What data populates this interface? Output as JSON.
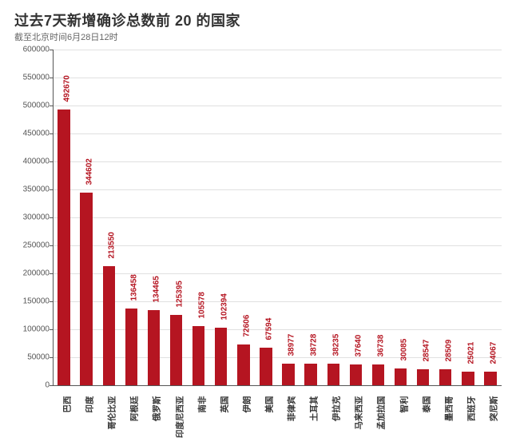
{
  "title": "过去7天新增确诊总数前 20 的国家",
  "subtitle": "截至北京时间6月28日12时",
  "chart": {
    "type": "bar",
    "background_color": "#ffffff",
    "grid_color": "#e0e0e0",
    "axis_color": "#555555",
    "bar_color": "#b51521",
    "label_color": "#b51521",
    "tick_label_color": "#555555",
    "title_fontsize": 18,
    "subtitle_fontsize": 11,
    "tick_fontsize": 10,
    "bar_label_fontsize": 10,
    "cat_label_fontsize": 10.5,
    "ylim": [
      0,
      600000
    ],
    "ytick_step": 50000,
    "yticks": [
      0,
      50000,
      100000,
      150000,
      200000,
      250000,
      300000,
      350000,
      400000,
      450000,
      500000,
      550000,
      600000
    ],
    "bar_width": 0.55,
    "categories": [
      "巴西",
      "印度",
      "哥伦比亚",
      "阿根廷",
      "俄罗斯",
      "印度尼西亚",
      "南非",
      "英国",
      "伊朗",
      "美国",
      "菲律宾",
      "土耳其",
      "伊拉克",
      "马来西亚",
      "孟加拉国",
      "智利",
      "泰国",
      "墨西哥",
      "西班牙",
      "突尼斯"
    ],
    "values": [
      492670,
      344602,
      213550,
      136458,
      134465,
      125395,
      105578,
      102394,
      72606,
      67594,
      38977,
      38728,
      38235,
      37640,
      36738,
      30085,
      28547,
      28509,
      25021,
      24067
    ]
  }
}
